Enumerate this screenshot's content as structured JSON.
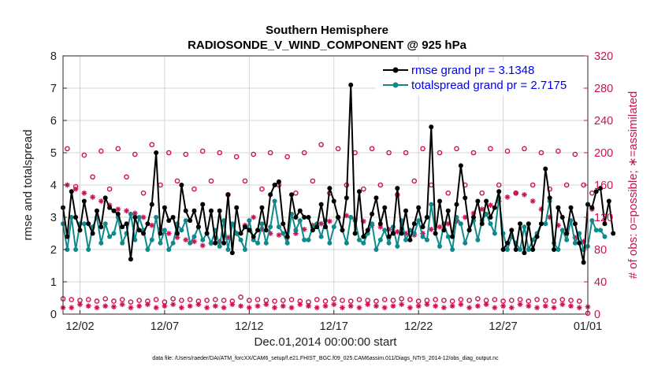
{
  "chart_data": {
    "type": "line",
    "title": "Southern Hemisphere",
    "subtitle": "RADIOSONDE_V_WIND_COMPONENT @ 925 hPa",
    "xlabel": "Dec.01,2014 00:00:00 start",
    "ylabel": "rmse and totalspread",
    "ylabel_right": "# of obs: o=possible; ∗=assimilated",
    "xlim": [
      0,
      124
    ],
    "ylim": [
      0,
      8
    ],
    "ylim_right": [
      0,
      320
    ],
    "x_ticks": [
      {
        "x": 4,
        "label": "12/02"
      },
      {
        "x": 24,
        "label": "12/07"
      },
      {
        "x": 44,
        "label": "12/12"
      },
      {
        "x": 64,
        "label": "12/17"
      },
      {
        "x": 84,
        "label": "12/22"
      },
      {
        "x": 104,
        "label": "12/27"
      },
      {
        "x": 124,
        "label": "01/01"
      }
    ],
    "y_ticks": [
      "0",
      "1",
      "2",
      "3",
      "4",
      "5",
      "6",
      "7",
      "8"
    ],
    "y_ticks_right": [
      "0",
      "40",
      "80",
      "120",
      "160",
      "200",
      "240",
      "280",
      "320"
    ],
    "legend": [
      "rmse grand pr = 3.1348",
      "totalspread grand pr = 2.7175"
    ],
    "legend_location": "top-right",
    "footnote": "data file: /Users/raeder/DAI/ATM_forcXX/CAM6_setup/f.e21.FHIST_BGC.f09_025.CAM6assim.011/Diags_NTrS_2014-12/obs_diag_output.nc",
    "colors": {
      "rmse": "#000000",
      "spread": "#10898b",
      "obs": "#cc1155",
      "grid": "#d4d4d4"
    },
    "series": [
      {
        "name": "rmse",
        "axis": "left",
        "marker": "filled-circle",
        "values": [
          3.3,
          2.4,
          3.8,
          3.0,
          2.6,
          3.5,
          2.8,
          2.5,
          3.2,
          2.7,
          3.6,
          3.3,
          3.2,
          3.1,
          2.7,
          2.8,
          1.7,
          3.0,
          2.6,
          2.5,
          2.8,
          3.4,
          5.0,
          2.5,
          3.3,
          2.9,
          3.0,
          2.5,
          4.0,
          3.2,
          2.9,
          3.2,
          2.7,
          3.4,
          2.5,
          3.2,
          2.2,
          3.2,
          2.2,
          3.7,
          1.9,
          3.3,
          2.5,
          2.7,
          2.6,
          2.4,
          2.6,
          3.3,
          2.6,
          3.7,
          4.0,
          4.1,
          2.8,
          2.4,
          3.7,
          3.0,
          3.2,
          3.0,
          3.0,
          2.6,
          2.7,
          3.4,
          2.7,
          3.9,
          3.5,
          3.0,
          2.6,
          3.6,
          7.1,
          2.5,
          3.8,
          2.4,
          2.6,
          3.1,
          3.6,
          2.8,
          3.3,
          2.4,
          2.5,
          3.9,
          2.5,
          3.2,
          2.3,
          2.8,
          3.3,
          2.7,
          3.0,
          5.8,
          2.5,
          3.5,
          2.6,
          3.2,
          2.4,
          3.4,
          4.6,
          3.6,
          2.6,
          3.0,
          3.5,
          2.8,
          3.5,
          3.0,
          3.3,
          3.8,
          2.0,
          2.2,
          2.6,
          2.0,
          2.8,
          1.9,
          2.8,
          2.0,
          2.4,
          2.8,
          4.5,
          3.6,
          2.0,
          3.3,
          3.0,
          2.5,
          3.3,
          2.8,
          2.2,
          1.6,
          3.4,
          3.3,
          3.8,
          3.9,
          2.8,
          3.5,
          2.5
        ]
      },
      {
        "name": "totalspread",
        "axis": "left",
        "marker": "filled-circle",
        "values": [
          2.8,
          2.0,
          3.0,
          2.0,
          2.8,
          2.8,
          2.0,
          2.7,
          3.0,
          2.2,
          2.8,
          2.4,
          2.5,
          3.0,
          2.2,
          2.5,
          3.1,
          2.3,
          3.0,
          2.6,
          2.0,
          2.3,
          3.0,
          2.2,
          2.6,
          2.0,
          2.2,
          2.8,
          2.6,
          2.9,
          2.2,
          2.4,
          2.7,
          2.3,
          2.5,
          2.2,
          2.6,
          2.1,
          2.9,
          2.0,
          2.8,
          2.5,
          2.3,
          2.0,
          2.9,
          2.3,
          2.2,
          2.8,
          2.2,
          2.7,
          3.5,
          2.7,
          2.5,
          2.2,
          3.1,
          2.6,
          2.9,
          2.3,
          2.3,
          2.7,
          2.8,
          2.4,
          2.9,
          2.2,
          2.7,
          3.0,
          2.6,
          2.2,
          3.0,
          2.9,
          2.3,
          2.2,
          2.5,
          2.8,
          2.0,
          2.3,
          2.6,
          2.2,
          2.7,
          2.1,
          2.9,
          2.3,
          2.6,
          2.5,
          2.9,
          2.4,
          2.3,
          3.4,
          2.5,
          2.1,
          2.8,
          2.4,
          2.0,
          3.0,
          2.8,
          2.2,
          2.6,
          2.9,
          2.3,
          2.9,
          3.1,
          2.8,
          2.5,
          3.6,
          2.5,
          2.0,
          2.4,
          2.2,
          2.0,
          2.7,
          2.0,
          2.3,
          2.5,
          2.8,
          2.8,
          3.5,
          2.2,
          2.0,
          2.6,
          2.3,
          2.9,
          2.2,
          2.5,
          2.0,
          2.1,
          2.9,
          2.6,
          2.6,
          2.4
        ]
      },
      {
        "name": "obs possible",
        "axis": "right",
        "marker": "open-circle",
        "values": [
          19,
          205,
          18,
          158,
          17,
          197,
          18,
          170,
          16,
          202,
          19,
          155,
          16,
          205,
          18,
          170,
          15,
          198,
          17,
          150,
          16,
          210,
          18,
          160,
          15,
          200,
          19,
          165,
          17,
          198,
          18,
          155,
          16,
          202,
          17,
          165,
          18,
          200,
          17,
          148,
          16,
          195,
          21,
          165,
          17,
          198,
          18,
          155,
          17,
          200,
          16,
          160,
          17,
          195,
          18,
          150,
          16,
          200,
          15,
          165,
          18,
          210,
          16,
          150,
          19,
          205,
          17,
          160,
          16,
          200,
          18,
          155,
          17,
          205,
          16,
          160,
          18,
          200,
          17,
          148,
          19,
          200,
          18,
          165,
          16,
          205,
          17,
          160,
          18,
          200,
          17,
          150,
          16,
          205,
          18,
          160,
          17,
          200,
          19,
          150,
          17,
          205,
          18,
          160,
          16,
          202,
          17,
          150,
          18,
          205,
          16,
          160,
          18,
          200,
          17,
          155,
          16,
          202,
          18,
          160,
          17,
          198,
          16,
          160,
          1,
          150
        ]
      },
      {
        "name": "obs assimilated",
        "axis": "right",
        "marker": "asterisk",
        "values": [
          8,
          160,
          8,
          155,
          12,
          150,
          10,
          145,
          8,
          140,
          10,
          135,
          9,
          130,
          12,
          128,
          8,
          125,
          10,
          120,
          12,
          110,
          8,
          105,
          10,
          100,
          12,
          95,
          8,
          92,
          10,
          90,
          12,
          85,
          8,
          88,
          10,
          90,
          8,
          95,
          12,
          100,
          10,
          110,
          8,
          120,
          10,
          105,
          12,
          100,
          8,
          98,
          10,
          95,
          8,
          100,
          12,
          105,
          10,
          110,
          8,
          112,
          10,
          115,
          12,
          120,
          8,
          122,
          10,
          118,
          8,
          115,
          12,
          110,
          10,
          108,
          8,
          105,
          10,
          102,
          12,
          100,
          8,
          98,
          10,
          100,
          12,
          105,
          10,
          108,
          8,
          112,
          10,
          115,
          12,
          120,
          8,
          125,
          10,
          130,
          12,
          135,
          8,
          140,
          10,
          145,
          8,
          150,
          12,
          148,
          10,
          140,
          8,
          130,
          10,
          120,
          8,
          110,
          12,
          100,
          10,
          95,
          8,
          90,
          9,
          130
        ]
      }
    ]
  }
}
